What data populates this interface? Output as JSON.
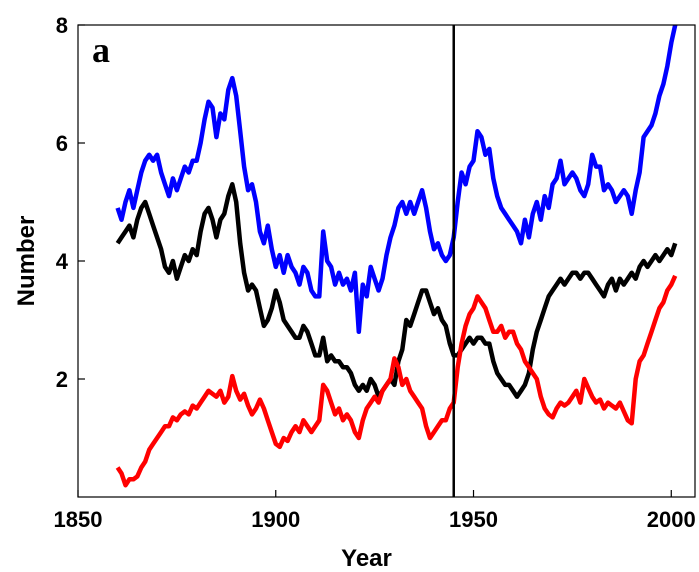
{
  "chart_data": {
    "type": "line",
    "title": "",
    "panel_label": "a",
    "xlabel": "Year",
    "ylabel": "Number",
    "xlim": [
      1850,
      2006
    ],
    "ylim": [
      0,
      8
    ],
    "xticks": [
      1850,
      1900,
      1950,
      2000
    ],
    "yticks": [
      2,
      4,
      6,
      8
    ],
    "grid": false,
    "vline": 1945,
    "series": [
      {
        "color": "#0000ff",
        "x": [
          1860,
          1861,
          1862,
          1863,
          1864,
          1865,
          1866,
          1867,
          1868,
          1869,
          1870,
          1871,
          1872,
          1873,
          1874,
          1875,
          1876,
          1877,
          1878,
          1879,
          1880,
          1881,
          1882,
          1883,
          1884,
          1885,
          1886,
          1887,
          1888,
          1889,
          1890,
          1891,
          1892,
          1893,
          1894,
          1895,
          1896,
          1897,
          1898,
          1899,
          1900,
          1901,
          1902,
          1903,
          1904,
          1905,
          1906,
          1907,
          1908,
          1909,
          1910,
          1911,
          1912,
          1913,
          1914,
          1915,
          1916,
          1917,
          1918,
          1919,
          1920,
          1921,
          1922,
          1923,
          1924,
          1925,
          1926,
          1927,
          1928,
          1929,
          1930,
          1931,
          1932,
          1933,
          1934,
          1935,
          1936,
          1937,
          1938,
          1939,
          1940,
          1941,
          1942,
          1943,
          1944,
          1945,
          1946,
          1947,
          1948,
          1949,
          1950,
          1951,
          1952,
          1953,
          1954,
          1955,
          1956,
          1957,
          1958,
          1959,
          1960,
          1961,
          1962,
          1963,
          1964,
          1965,
          1966,
          1967,
          1968,
          1969,
          1970,
          1971,
          1972,
          1973,
          1974,
          1975,
          1976,
          1977,
          1978,
          1979,
          1980,
          1981,
          1982,
          1983,
          1984,
          1985,
          1986,
          1987,
          1988,
          1989,
          1990,
          1991,
          1992,
          1993,
          1994,
          1995,
          1996,
          1997,
          1998,
          1999,
          2000,
          2001
        ],
        "values": [
          4.9,
          4.7,
          5.0,
          5.2,
          4.9,
          5.2,
          5.5,
          5.7,
          5.8,
          5.7,
          5.8,
          5.5,
          5.3,
          5.1,
          5.4,
          5.2,
          5.4,
          5.6,
          5.5,
          5.7,
          5.7,
          6.0,
          6.4,
          6.7,
          6.6,
          6.1,
          6.5,
          6.4,
          6.9,
          7.1,
          6.8,
          6.2,
          5.6,
          5.2,
          5.3,
          5.0,
          4.5,
          4.3,
          4.6,
          4.2,
          3.9,
          4.1,
          3.8,
          4.1,
          3.9,
          3.8,
          3.6,
          3.9,
          3.8,
          3.5,
          3.4,
          3.4,
          4.5,
          4.0,
          3.9,
          3.6,
          3.8,
          3.6,
          3.7,
          3.5,
          3.8,
          2.8,
          3.6,
          3.4,
          3.9,
          3.7,
          3.5,
          3.7,
          4.1,
          4.4,
          4.6,
          4.9,
          5.0,
          4.8,
          5.0,
          4.8,
          5.0,
          5.2,
          4.9,
          4.5,
          4.2,
          4.3,
          4.1,
          4.0,
          4.1,
          4.4,
          5.0,
          5.5,
          5.3,
          5.6,
          5.7,
          6.2,
          6.1,
          5.8,
          5.9,
          5.4,
          5.1,
          4.9,
          4.8,
          4.7,
          4.6,
          4.5,
          4.3,
          4.7,
          4.4,
          4.8,
          5.0,
          4.7,
          5.1,
          4.9,
          5.3,
          5.4,
          5.7,
          5.3,
          5.4,
          5.5,
          5.4,
          5.2,
          5.1,
          5.3,
          5.8,
          5.6,
          5.6,
          5.2,
          5.3,
          5.2,
          5.0,
          5.1,
          5.2,
          5.1,
          4.8,
          5.2,
          5.5,
          6.1,
          6.2,
          6.3,
          6.5,
          6.8,
          7.0,
          7.3,
          7.7,
          8.0
        ]
      },
      {
        "color": "#000000",
        "x": [
          1860,
          1861,
          1862,
          1863,
          1864,
          1865,
          1866,
          1867,
          1868,
          1869,
          1870,
          1871,
          1872,
          1873,
          1874,
          1875,
          1876,
          1877,
          1878,
          1879,
          1880,
          1881,
          1882,
          1883,
          1884,
          1885,
          1886,
          1887,
          1888,
          1889,
          1890,
          1891,
          1892,
          1893,
          1894,
          1895,
          1896,
          1897,
          1898,
          1899,
          1900,
          1901,
          1902,
          1903,
          1904,
          1905,
          1906,
          1907,
          1908,
          1909,
          1910,
          1911,
          1912,
          1913,
          1914,
          1915,
          1916,
          1917,
          1918,
          1919,
          1920,
          1921,
          1922,
          1923,
          1924,
          1925,
          1926,
          1927,
          1928,
          1929,
          1930,
          1931,
          1932,
          1933,
          1934,
          1935,
          1936,
          1937,
          1938,
          1939,
          1940,
          1941,
          1942,
          1943,
          1944,
          1945,
          1946,
          1947,
          1948,
          1949,
          1950,
          1951,
          1952,
          1953,
          1954,
          1955,
          1956,
          1957,
          1958,
          1959,
          1960,
          1961,
          1962,
          1963,
          1964,
          1965,
          1966,
          1967,
          1968,
          1969,
          1970,
          1971,
          1972,
          1973,
          1974,
          1975,
          1976,
          1977,
          1978,
          1979,
          1980,
          1981,
          1982,
          1983,
          1984,
          1985,
          1986,
          1987,
          1988,
          1989,
          1990,
          1991,
          1992,
          1993,
          1994,
          1995,
          1996,
          1997,
          1998,
          1999,
          2000,
          2001
        ],
        "values": [
          4.3,
          4.4,
          4.5,
          4.6,
          4.4,
          4.7,
          4.9,
          5.0,
          4.8,
          4.6,
          4.4,
          4.2,
          3.9,
          3.8,
          4.0,
          3.7,
          3.9,
          4.1,
          4.0,
          4.2,
          4.1,
          4.5,
          4.8,
          4.9,
          4.7,
          4.4,
          4.7,
          4.8,
          5.1,
          5.3,
          5.0,
          4.3,
          3.8,
          3.5,
          3.6,
          3.5,
          3.2,
          2.9,
          3.0,
          3.2,
          3.5,
          3.3,
          3.0,
          2.9,
          2.8,
          2.7,
          2.7,
          2.9,
          2.8,
          2.6,
          2.4,
          2.4,
          2.7,
          2.3,
          2.4,
          2.3,
          2.3,
          2.2,
          2.2,
          2.1,
          1.9,
          1.8,
          1.9,
          1.8,
          2.0,
          1.9,
          1.7,
          1.8,
          1.9,
          2.0,
          1.9,
          2.3,
          2.5,
          3.0,
          2.9,
          3.1,
          3.3,
          3.5,
          3.5,
          3.3,
          3.1,
          3.2,
          3.0,
          2.9,
          2.6,
          2.4,
          2.4,
          2.5,
          2.6,
          2.7,
          2.6,
          2.7,
          2.7,
          2.6,
          2.6,
          2.3,
          2.1,
          2.0,
          1.9,
          1.9,
          1.8,
          1.7,
          1.8,
          1.9,
          2.1,
          2.5,
          2.8,
          3.0,
          3.2,
          3.4,
          3.5,
          3.6,
          3.7,
          3.6,
          3.7,
          3.8,
          3.8,
          3.7,
          3.8,
          3.8,
          3.7,
          3.6,
          3.5,
          3.4,
          3.6,
          3.7,
          3.5,
          3.7,
          3.6,
          3.7,
          3.8,
          3.7,
          3.9,
          4.0,
          3.9,
          4.0,
          4.1,
          4.0,
          4.1,
          4.2,
          4.1,
          4.3
        ]
      },
      {
        "color": "#ff0000",
        "x": [
          1860,
          1861,
          1862,
          1863,
          1864,
          1865,
          1866,
          1867,
          1868,
          1869,
          1870,
          1871,
          1872,
          1873,
          1874,
          1875,
          1876,
          1877,
          1878,
          1879,
          1880,
          1881,
          1882,
          1883,
          1884,
          1885,
          1886,
          1887,
          1888,
          1889,
          1890,
          1891,
          1892,
          1893,
          1894,
          1895,
          1896,
          1897,
          1898,
          1899,
          1900,
          1901,
          1902,
          1903,
          1904,
          1905,
          1906,
          1907,
          1908,
          1909,
          1910,
          1911,
          1912,
          1913,
          1914,
          1915,
          1916,
          1917,
          1918,
          1919,
          1920,
          1921,
          1922,
          1923,
          1924,
          1925,
          1926,
          1927,
          1928,
          1929,
          1930,
          1931,
          1932,
          1933,
          1934,
          1935,
          1936,
          1937,
          1938,
          1939,
          1940,
          1941,
          1942,
          1943,
          1944,
          1945,
          1946,
          1947,
          1948,
          1949,
          1950,
          1951,
          1952,
          1953,
          1954,
          1955,
          1956,
          1957,
          1958,
          1959,
          1960,
          1961,
          1962,
          1963,
          1964,
          1965,
          1966,
          1967,
          1968,
          1969,
          1970,
          1971,
          1972,
          1973,
          1974,
          1975,
          1976,
          1977,
          1978,
          1979,
          1980,
          1981,
          1982,
          1983,
          1984,
          1985,
          1986,
          1987,
          1988,
          1989,
          1990,
          1991,
          1992,
          1993,
          1994,
          1995,
          1996,
          1997,
          1998,
          1999,
          2000,
          2001
        ],
        "values": [
          0.5,
          0.4,
          0.2,
          0.3,
          0.3,
          0.35,
          0.5,
          0.6,
          0.8,
          0.9,
          1.0,
          1.1,
          1.2,
          1.2,
          1.35,
          1.3,
          1.4,
          1.45,
          1.4,
          1.55,
          1.5,
          1.6,
          1.7,
          1.8,
          1.75,
          1.7,
          1.8,
          1.6,
          1.7,
          2.05,
          1.8,
          1.65,
          1.75,
          1.55,
          1.4,
          1.5,
          1.65,
          1.5,
          1.3,
          1.1,
          0.9,
          0.85,
          1.0,
          0.95,
          1.1,
          1.2,
          1.1,
          1.3,
          1.2,
          1.1,
          1.2,
          1.3,
          1.9,
          1.8,
          1.6,
          1.4,
          1.5,
          1.3,
          1.4,
          1.3,
          1.1,
          1.0,
          1.3,
          1.5,
          1.6,
          1.7,
          1.6,
          1.8,
          1.9,
          2.0,
          2.35,
          2.2,
          1.9,
          2.0,
          1.8,
          1.7,
          1.6,
          1.5,
          1.2,
          1.0,
          1.1,
          1.2,
          1.3,
          1.3,
          1.5,
          1.6,
          2.2,
          2.6,
          2.9,
          3.1,
          3.2,
          3.4,
          3.3,
          3.2,
          3.0,
          2.8,
          2.8,
          2.9,
          2.7,
          2.8,
          2.8,
          2.6,
          2.5,
          2.3,
          2.2,
          2.1,
          2.0,
          1.7,
          1.5,
          1.4,
          1.35,
          1.5,
          1.6,
          1.55,
          1.6,
          1.7,
          1.8,
          1.6,
          2.0,
          1.85,
          1.7,
          1.6,
          1.65,
          1.5,
          1.6,
          1.55,
          1.5,
          1.6,
          1.45,
          1.3,
          1.25,
          2.0,
          2.3,
          2.4,
          2.6,
          2.8,
          3.0,
          3.2,
          3.3,
          3.5,
          3.6,
          3.75
        ]
      }
    ]
  }
}
